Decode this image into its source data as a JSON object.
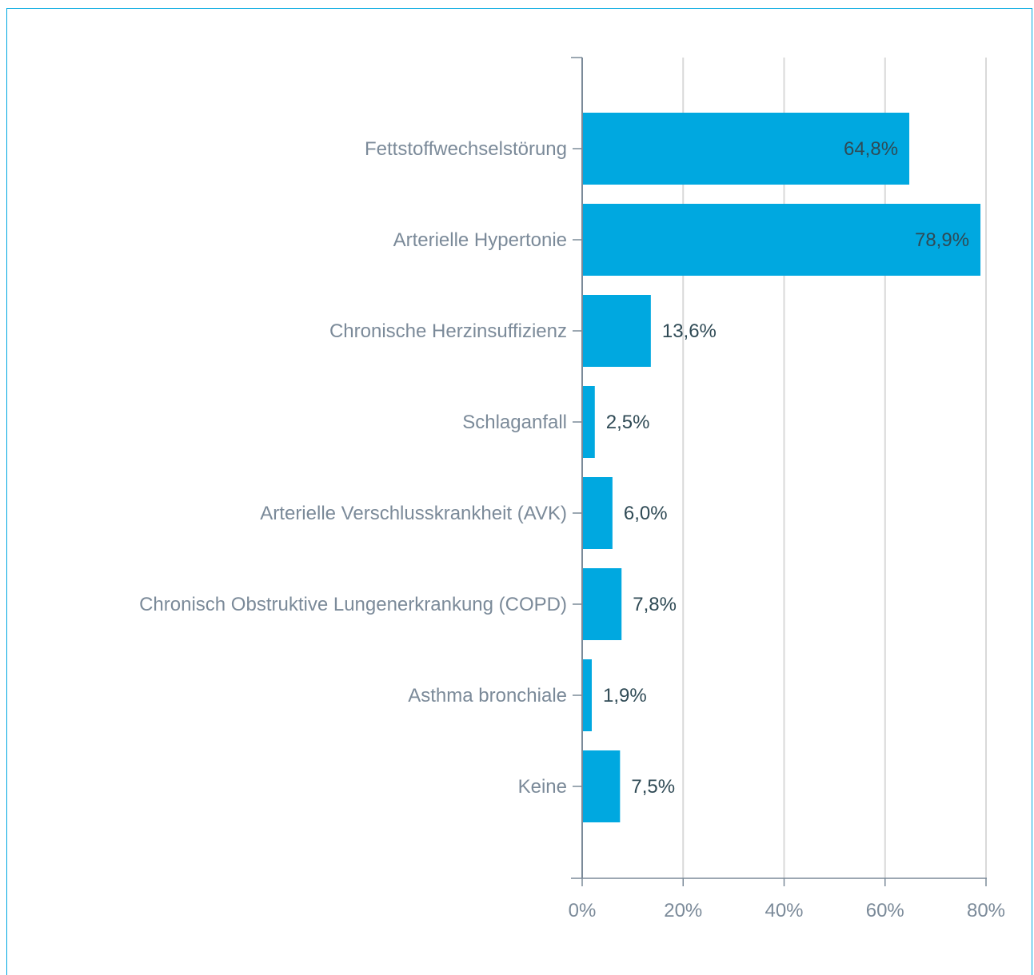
{
  "colors": {
    "bar": "#00a8e0",
    "grid": "#d9d9d9",
    "axis": "#7b8a99",
    "frame": "#00a8e0"
  },
  "chart_data": {
    "type": "bar",
    "orientation": "horizontal",
    "categories": [
      "Fettstoffwechselstörung",
      "Arterielle Hypertonie",
      "Chronische Herzinsuffizienz",
      "Schlaganfall",
      "Arterielle Verschlusskrankheit (AVK)",
      "Chronisch Obstruktive Lungenerkrankung (COPD)",
      "Asthma bronchiale",
      "Keine"
    ],
    "values": [
      64.8,
      78.9,
      13.6,
      2.5,
      6.0,
      7.8,
      1.9,
      7.5
    ],
    "value_labels": [
      "64,8%",
      "78,9%",
      "13,6%",
      "2,5%",
      "6,0%",
      "7,8%",
      "1,9%",
      "7,5%"
    ],
    "xlim": [
      0,
      80
    ],
    "xticks": [
      0,
      20,
      40,
      60,
      80
    ],
    "xtick_labels": [
      "0%",
      "20%",
      "40%",
      "60%",
      "80%"
    ],
    "grid": true,
    "title": "",
    "xlabel": "",
    "ylabel": ""
  }
}
